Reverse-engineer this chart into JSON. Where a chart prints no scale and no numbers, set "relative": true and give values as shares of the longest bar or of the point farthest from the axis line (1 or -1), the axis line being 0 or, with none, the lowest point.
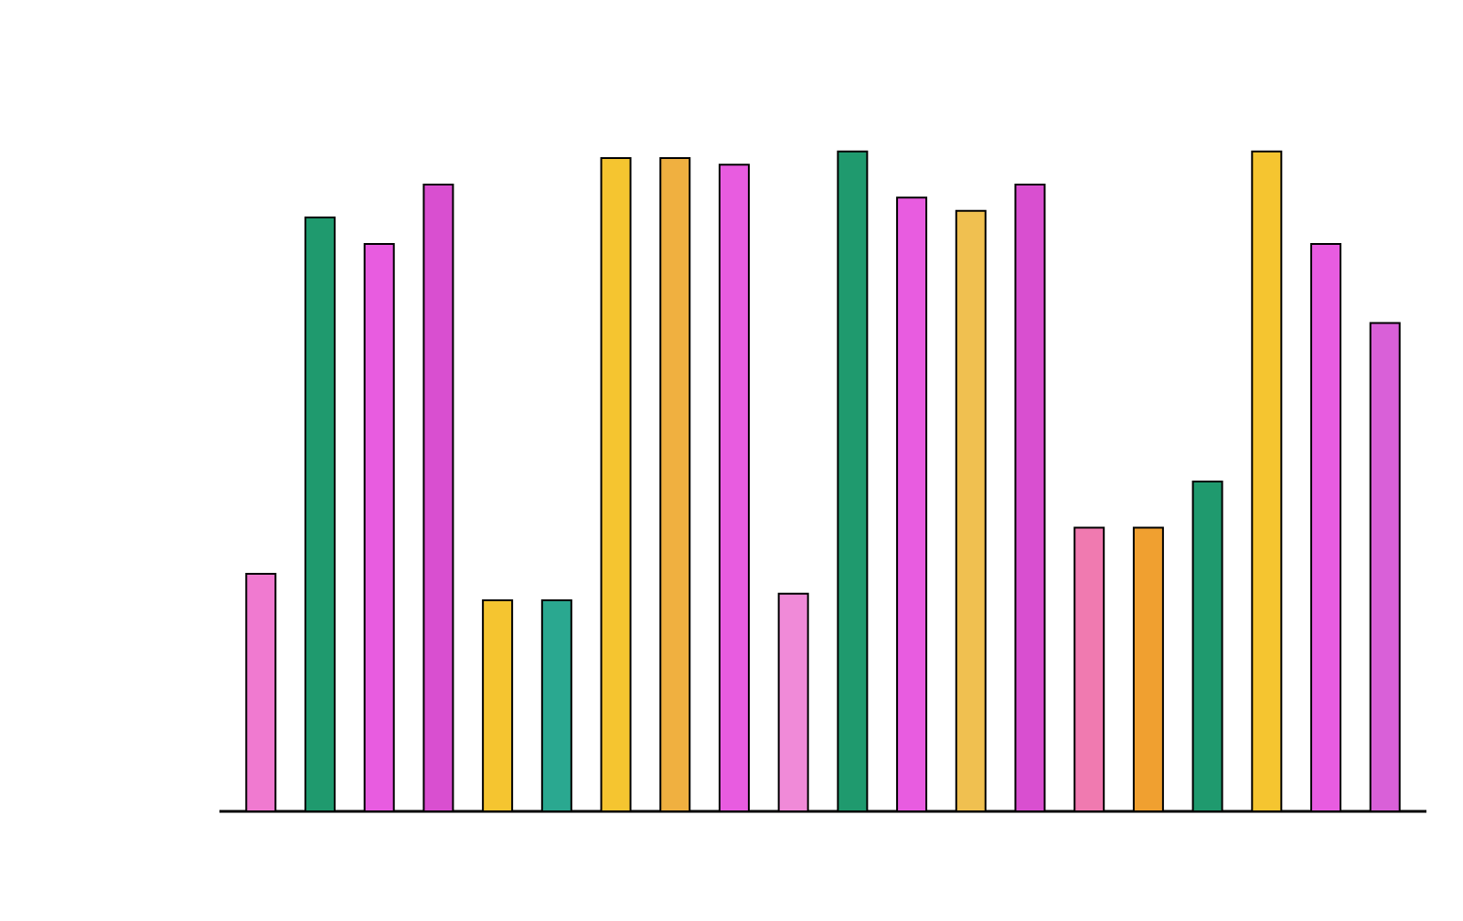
{
  "chart_data": {
    "type": "bar",
    "relative": true,
    "categories": [
      null,
      null,
      null,
      null,
      null,
      null,
      null,
      null,
      null,
      null,
      null,
      null,
      null,
      null,
      null,
      null,
      null,
      null,
      null,
      null
    ],
    "values": [
      0.36,
      0.9,
      0.86,
      0.95,
      0.32,
      0.32,
      0.99,
      0.99,
      0.98,
      0.33,
      1.0,
      0.93,
      0.91,
      0.95,
      0.43,
      0.43,
      0.5,
      1.0,
      0.86,
      0.74
    ],
    "colors": [
      "#f07ad0",
      "#1f9a6e",
      "#e85ce0",
      "#d94fd0",
      "#f5c530",
      "#2aa890",
      "#f5c530",
      "#f0b040",
      "#e85ce0",
      "#f08ad8",
      "#1f9a6e",
      "#e85ce0",
      "#f0c050",
      "#d94fd0",
      "#f07ab0",
      "#f0a030",
      "#1f9a6e",
      "#f5c530",
      "#e85ce0",
      "#d960d8"
    ]
  }
}
